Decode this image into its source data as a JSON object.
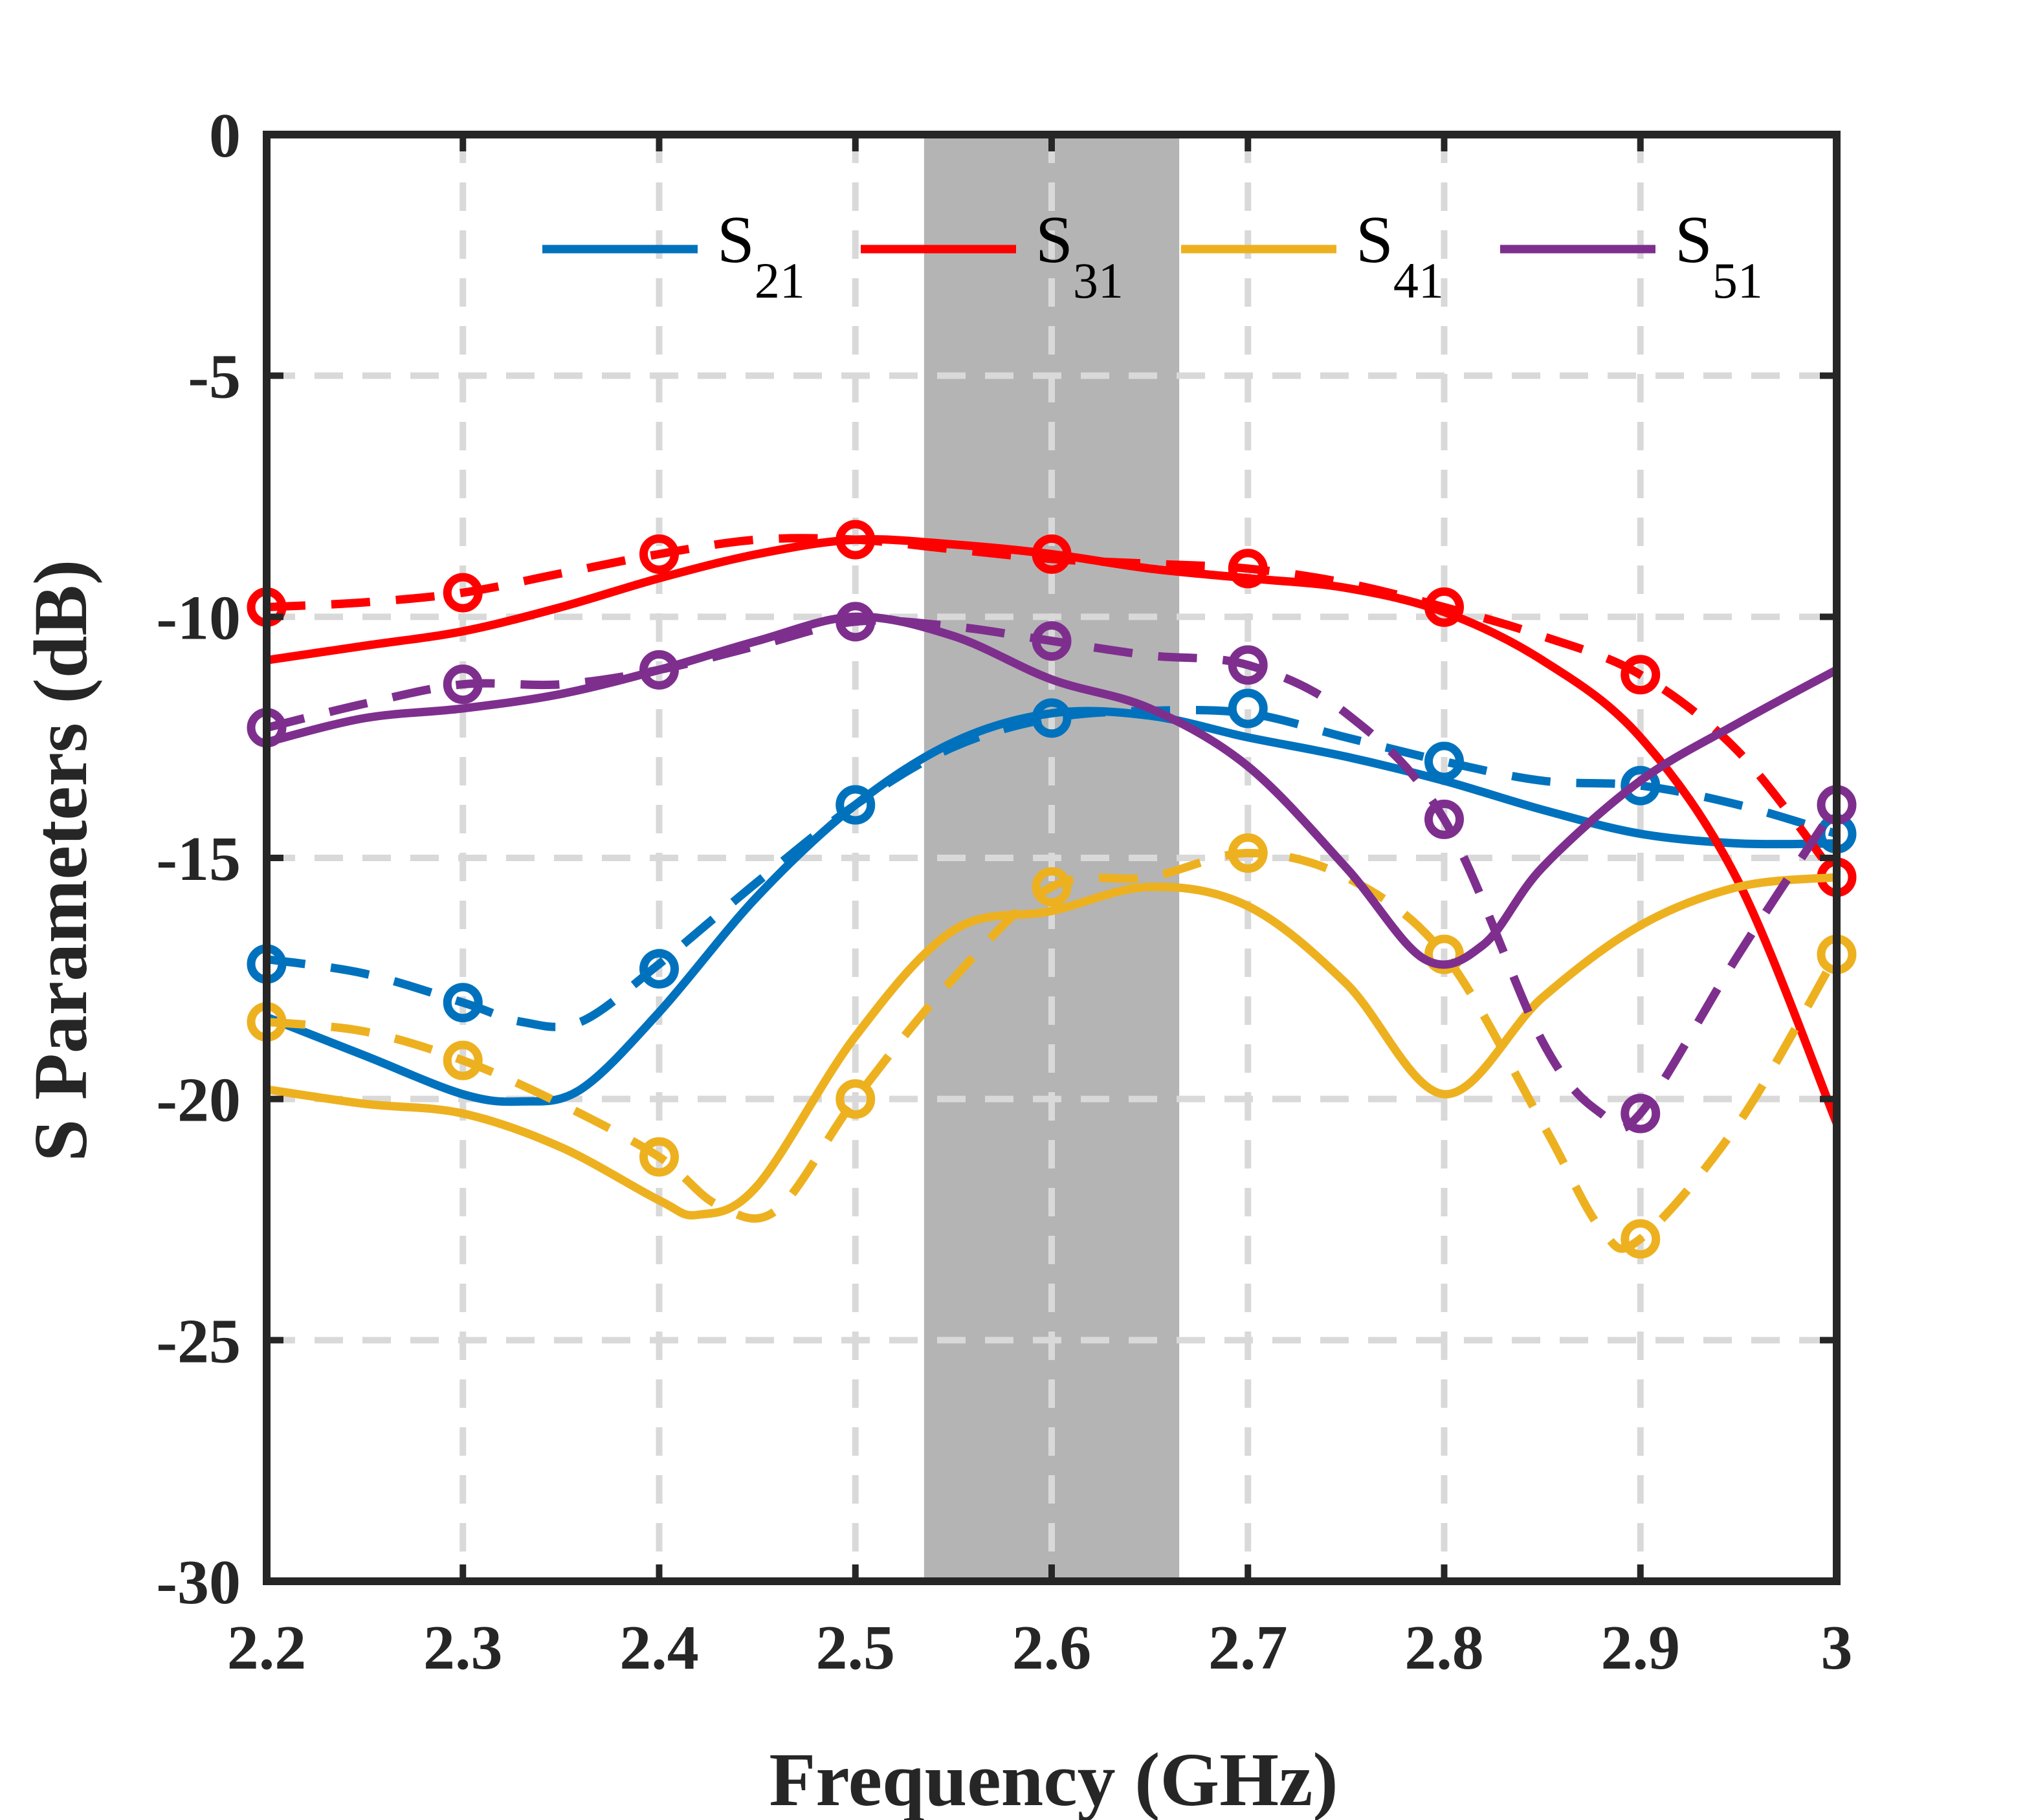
{
  "chart_data": {
    "type": "line",
    "xlabel": "Frequency (GHz)",
    "ylabel": "S Parameters (dB)",
    "xlim": [
      2.2,
      3.0
    ],
    "ylim": [
      -30,
      0
    ],
    "xticks": [
      "2.2",
      "2.3",
      "2.4",
      "2.5",
      "2.6",
      "2.7",
      "2.8",
      "2.9",
      "3"
    ],
    "yticks": [
      "0",
      "-5",
      "-10",
      "-15",
      "-20",
      "-25",
      "-30"
    ],
    "grid": true,
    "legend_position": "top",
    "shaded_band": {
      "x_start": 2.535,
      "x_end": 2.665,
      "color": "#8c8c8c"
    },
    "series": [
      {
        "name": "S",
        "subscript": "21",
        "color": "#0072BD",
        "solid": [
          [
            2.2,
            -18.3
          ],
          [
            2.25,
            -19.1
          ],
          [
            2.3,
            -19.9
          ],
          [
            2.33,
            -20.05
          ],
          [
            2.36,
            -19.8
          ],
          [
            2.4,
            -18.2
          ],
          [
            2.45,
            -15.8
          ],
          [
            2.5,
            -13.9
          ],
          [
            2.55,
            -12.6
          ],
          [
            2.6,
            -12.0
          ],
          [
            2.65,
            -12.05
          ],
          [
            2.7,
            -12.5
          ],
          [
            2.75,
            -12.9
          ],
          [
            2.8,
            -13.4
          ],
          [
            2.85,
            -14.0
          ],
          [
            2.9,
            -14.5
          ],
          [
            2.95,
            -14.7
          ],
          [
            3.0,
            -14.7
          ]
        ],
        "dashed": [
          [
            2.2,
            -17.1
          ],
          [
            2.25,
            -17.4
          ],
          [
            2.3,
            -18.0
          ],
          [
            2.33,
            -18.4
          ],
          [
            2.36,
            -18.4
          ],
          [
            2.4,
            -17.2
          ],
          [
            2.45,
            -15.5
          ],
          [
            2.5,
            -13.9
          ],
          [
            2.55,
            -12.7
          ],
          [
            2.6,
            -12.1
          ],
          [
            2.65,
            -11.95
          ],
          [
            2.7,
            -12.0
          ],
          [
            2.75,
            -12.5
          ],
          [
            2.8,
            -13.0
          ],
          [
            2.85,
            -13.4
          ],
          [
            2.9,
            -13.5
          ],
          [
            2.95,
            -13.9
          ],
          [
            3.0,
            -14.5
          ]
        ],
        "markers": [
          [
            2.2,
            -17.2
          ],
          [
            2.3,
            -18.0
          ],
          [
            2.4,
            -17.3
          ],
          [
            2.5,
            -13.9
          ],
          [
            2.6,
            -12.1
          ],
          [
            2.7,
            -11.9
          ],
          [
            2.8,
            -13.0
          ],
          [
            2.9,
            -13.5
          ],
          [
            3.0,
            -14.5
          ]
        ]
      },
      {
        "name": "S",
        "subscript": "31",
        "color": "#FF0000",
        "solid": [
          [
            2.2,
            -10.9
          ],
          [
            2.25,
            -10.6
          ],
          [
            2.3,
            -10.3
          ],
          [
            2.35,
            -9.8
          ],
          [
            2.4,
            -9.2
          ],
          [
            2.45,
            -8.7
          ],
          [
            2.5,
            -8.4
          ],
          [
            2.55,
            -8.5
          ],
          [
            2.6,
            -8.7
          ],
          [
            2.65,
            -9.0
          ],
          [
            2.7,
            -9.2
          ],
          [
            2.75,
            -9.4
          ],
          [
            2.8,
            -9.9
          ],
          [
            2.85,
            -10.9
          ],
          [
            2.9,
            -12.5
          ],
          [
            2.95,
            -15.5
          ],
          [
            3.0,
            -20.5
          ]
        ],
        "dashed": [
          [
            2.2,
            -9.8
          ],
          [
            2.25,
            -9.7
          ],
          [
            2.3,
            -9.5
          ],
          [
            2.35,
            -9.1
          ],
          [
            2.4,
            -8.7
          ],
          [
            2.45,
            -8.4
          ],
          [
            2.5,
            -8.4
          ],
          [
            2.55,
            -8.6
          ],
          [
            2.6,
            -8.8
          ],
          [
            2.65,
            -8.9
          ],
          [
            2.7,
            -9.0
          ],
          [
            2.75,
            -9.3
          ],
          [
            2.8,
            -9.8
          ],
          [
            2.85,
            -10.4
          ],
          [
            2.9,
            -11.2
          ],
          [
            2.95,
            -12.8
          ],
          [
            3.0,
            -15.4
          ]
        ],
        "markers": [
          [
            2.2,
            -9.8
          ],
          [
            2.3,
            -9.5
          ],
          [
            2.4,
            -8.7
          ],
          [
            2.5,
            -8.4
          ],
          [
            2.6,
            -8.7
          ],
          [
            2.7,
            -9.0
          ],
          [
            2.8,
            -9.8
          ],
          [
            2.9,
            -11.2
          ],
          [
            3.0,
            -15.4
          ]
        ]
      },
      {
        "name": "S",
        "subscript": "41",
        "color": "#EDB120",
        "solid": [
          [
            2.2,
            -19.8
          ],
          [
            2.25,
            -20.1
          ],
          [
            2.3,
            -20.3
          ],
          [
            2.35,
            -21.0
          ],
          [
            2.4,
            -22.1
          ],
          [
            2.42,
            -22.4
          ],
          [
            2.45,
            -21.8
          ],
          [
            2.5,
            -18.7
          ],
          [
            2.55,
            -16.5
          ],
          [
            2.6,
            -16.1
          ],
          [
            2.65,
            -15.6
          ],
          [
            2.7,
            -16.0
          ],
          [
            2.75,
            -17.6
          ],
          [
            2.8,
            -19.9
          ],
          [
            2.85,
            -17.9
          ],
          [
            2.9,
            -16.4
          ],
          [
            2.95,
            -15.6
          ],
          [
            3.0,
            -15.4
          ]
        ],
        "dashed": [
          [
            2.2,
            -18.4
          ],
          [
            2.25,
            -18.6
          ],
          [
            2.3,
            -19.2
          ],
          [
            2.35,
            -20.1
          ],
          [
            2.4,
            -21.2
          ],
          [
            2.43,
            -22.2
          ],
          [
            2.46,
            -22.3
          ],
          [
            2.5,
            -20.0
          ],
          [
            2.55,
            -17.5
          ],
          [
            2.6,
            -15.6
          ],
          [
            2.65,
            -15.4
          ],
          [
            2.7,
            -14.9
          ],
          [
            2.75,
            -15.4
          ],
          [
            2.8,
            -17.0
          ],
          [
            2.85,
            -20.5
          ],
          [
            2.88,
            -22.7
          ],
          [
            2.9,
            -22.9
          ],
          [
            2.95,
            -20.5
          ],
          [
            3.0,
            -17.0
          ]
        ],
        "markers": [
          [
            2.2,
            -18.4
          ],
          [
            2.3,
            -19.2
          ],
          [
            2.4,
            -21.2
          ],
          [
            2.5,
            -20.0
          ],
          [
            2.6,
            -15.6
          ],
          [
            2.7,
            -14.9
          ],
          [
            2.8,
            -17.0
          ],
          [
            2.9,
            -22.9
          ],
          [
            3.0,
            -17.0
          ]
        ]
      },
      {
        "name": "S",
        "subscript": "51",
        "color": "#7E2F8E",
        "solid": [
          [
            2.2,
            -12.6
          ],
          [
            2.25,
            -12.1
          ],
          [
            2.3,
            -11.9
          ],
          [
            2.35,
            -11.6
          ],
          [
            2.4,
            -11.1
          ],
          [
            2.45,
            -10.5
          ],
          [
            2.5,
            -10.0
          ],
          [
            2.55,
            -10.4
          ],
          [
            2.6,
            -11.3
          ],
          [
            2.65,
            -11.9
          ],
          [
            2.7,
            -13.1
          ],
          [
            2.75,
            -15.2
          ],
          [
            2.79,
            -17.1
          ],
          [
            2.82,
            -16.8
          ],
          [
            2.85,
            -15.2
          ],
          [
            2.9,
            -13.4
          ],
          [
            2.95,
            -12.2
          ],
          [
            3.0,
            -11.1
          ]
        ],
        "dashed": [
          [
            2.2,
            -12.3
          ],
          [
            2.25,
            -11.8
          ],
          [
            2.3,
            -11.4
          ],
          [
            2.35,
            -11.4
          ],
          [
            2.4,
            -11.1
          ],
          [
            2.45,
            -10.6
          ],
          [
            2.5,
            -10.1
          ],
          [
            2.55,
            -10.2
          ],
          [
            2.6,
            -10.5
          ],
          [
            2.65,
            -10.8
          ],
          [
            2.7,
            -11.0
          ],
          [
            2.75,
            -12.0
          ],
          [
            2.8,
            -14.2
          ],
          [
            2.85,
            -18.8
          ],
          [
            2.88,
            -20.3
          ],
          [
            2.9,
            -20.3
          ],
          [
            2.95,
            -17.0
          ],
          [
            3.0,
            -13.9
          ]
        ],
        "markers": [
          [
            2.2,
            -12.3
          ],
          [
            2.3,
            -11.4
          ],
          [
            2.4,
            -11.1
          ],
          [
            2.5,
            -10.1
          ],
          [
            2.6,
            -10.5
          ],
          [
            2.7,
            -11.0
          ],
          [
            2.8,
            -14.2
          ],
          [
            2.9,
            -20.3
          ],
          [
            3.0,
            -13.9
          ]
        ]
      }
    ]
  }
}
